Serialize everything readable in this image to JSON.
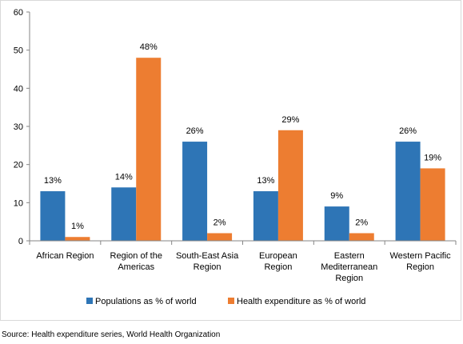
{
  "chart_data": {
    "type": "bar",
    "categories": [
      [
        "African Region"
      ],
      [
        "Region of the",
        "Americas"
      ],
      [
        "South-East Asia",
        "Region"
      ],
      [
        "European",
        "Region"
      ],
      [
        "Eastern",
        "Mediterranean",
        "Region"
      ],
      [
        "Western Pacific",
        "Region"
      ]
    ],
    "series": [
      {
        "name": "Populations as % of world",
        "color": "#2e75b6",
        "values": [
          13,
          14,
          26,
          13,
          9,
          26
        ],
        "labels": [
          "13%",
          "14%",
          "26%",
          "13%",
          "9%",
          "26%"
        ]
      },
      {
        "name": "Health expenditure as % of world",
        "color": "#ed7d31",
        "values": [
          1,
          48,
          2,
          29,
          2,
          19
        ],
        "labels": [
          "1%",
          "48%",
          "2%",
          "29%",
          "2%",
          "19%"
        ]
      }
    ],
    "ylim": [
      0,
      60
    ],
    "yticks": [
      0,
      10,
      20,
      30,
      40,
      50,
      60
    ],
    "grid": false,
    "legend": "bottom"
  },
  "source": "Source: Health expenditure series, World Health Organization"
}
